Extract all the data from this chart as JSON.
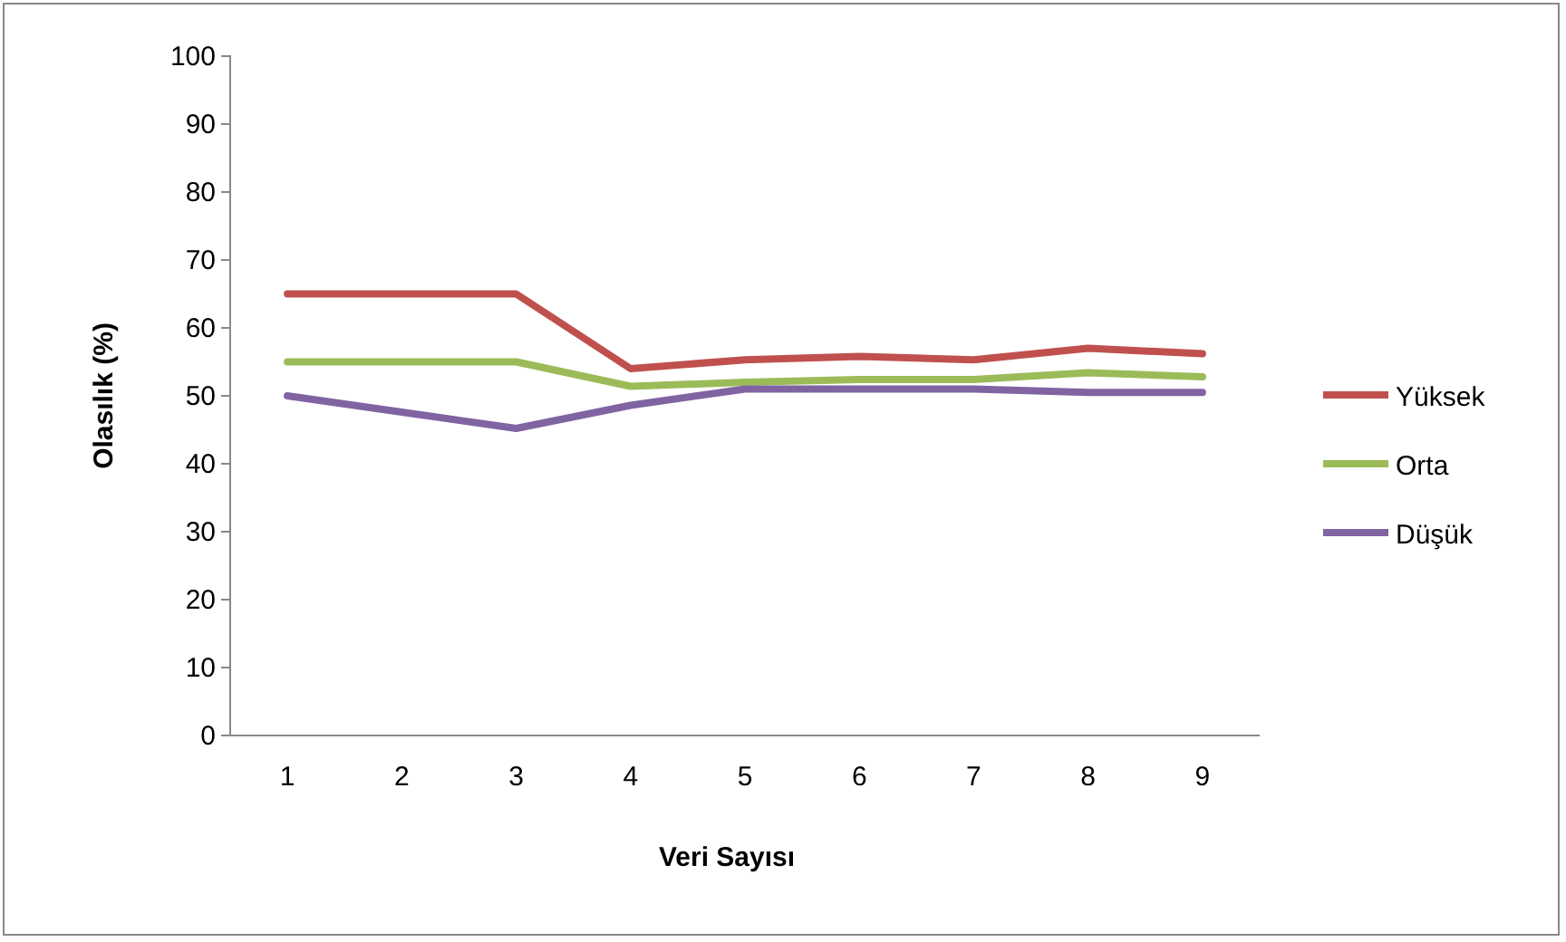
{
  "chart_data": {
    "type": "line",
    "xlabel": "Veri Sayısı",
    "ylabel": "Olasılık (%)",
    "categories": [
      "1",
      "2",
      "3",
      "4",
      "5",
      "6",
      "7",
      "8",
      "9"
    ],
    "series": [
      {
        "name": "Yüksek",
        "color": "#c0504d",
        "values": [
          65,
          65,
          65,
          54,
          55.3,
          55.8,
          55.3,
          57,
          56.2
        ]
      },
      {
        "name": "Orta",
        "color": "#9bbb59",
        "values": [
          55,
          55,
          55,
          51.4,
          52,
          52.4,
          52.4,
          53.4,
          52.8
        ]
      },
      {
        "name": "Düşük",
        "color": "#8064a2",
        "values": [
          50,
          47.6,
          45.2,
          48.6,
          51,
          51,
          51,
          50.5,
          50.5
        ]
      }
    ],
    "ylim": [
      0,
      100
    ],
    "yticks": [
      0,
      10,
      20,
      30,
      40,
      50,
      60,
      70,
      80,
      90,
      100
    ],
    "grid": false,
    "legend": "right",
    "marker": "none",
    "line_style": "solid"
  }
}
